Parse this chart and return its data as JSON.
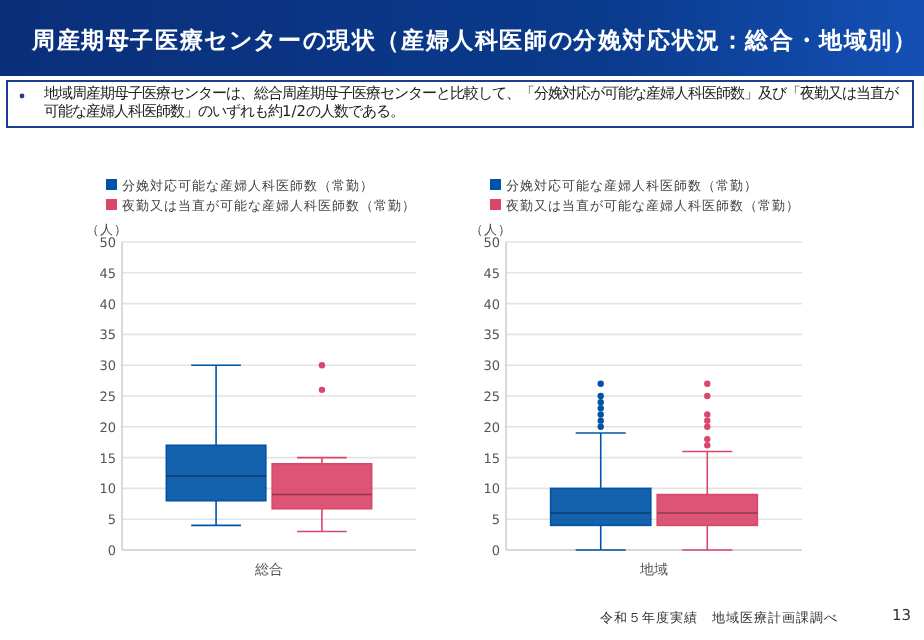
{
  "chart_data": [
    {
      "type": "box",
      "title": "周産期母子医療センターの現状（産婦人科医師の分娩対応状況：総合・地域別）",
      "subtitle": "地域周産期母子医療センターは、総合周産期母子医療センターと比較して、「分娩対応が可能な産婦人科医師数」及び「夜勤又は当直が可能な産婦人科医師数」のいずれも約1/2の人数である。",
      "ylabel": "（人）",
      "categories": [
        "総合"
      ],
      "ylim": [
        0,
        50
      ],
      "yticks": [
        0,
        5,
        10,
        15,
        20,
        25,
        30,
        35,
        40,
        45,
        50
      ],
      "grid": "y",
      "legend": "top",
      "series": [
        {
          "name": "分娩対応可能な産婦人科医師数（常勤）",
          "color": "#0054a6",
          "boxes": [
            {
              "low": 4,
              "q1": 8,
              "median": 12,
              "q3": 17,
              "high": 30
            }
          ]
        },
        {
          "name": "夜勤又は当直が可能な産婦人科医師数（常勤）",
          "color": "#d9476a",
          "boxes": [
            {
              "low": 3,
              "q1": 6.7,
              "median": 9,
              "q3": 14,
              "high": 15,
              "outliers": [
                26,
                30
              ]
            }
          ]
        }
      ]
    },
    {
      "type": "box",
      "ylabel": "（人）",
      "categories": [
        "地域"
      ],
      "ylim": [
        0,
        50
      ],
      "yticks": [
        0,
        5,
        10,
        15,
        20,
        25,
        30,
        35,
        40,
        45,
        50
      ],
      "grid": "y",
      "legend": "top",
      "annotations": [
        "令和５年度実績　地域医療計画課調べ",
        "13"
      ],
      "series": [
        {
          "name": "分娩対応可能な産婦人科医師数（常勤）",
          "color": "#0054a6",
          "boxes": [
            {
              "low": 0,
              "q1": 4,
              "median": 6,
              "q3": 10,
              "high": 19,
              "outliers": [
                20,
                21,
                22,
                23,
                24,
                25,
                27
              ]
            }
          ]
        },
        {
          "name": "夜勤又は当直が可能な産婦人科医師数（常勤）",
          "color": "#d9476a",
          "boxes": [
            {
              "low": 0,
              "q1": 4,
              "median": 6,
              "q3": 9,
              "high": 16,
              "outliers": [
                17,
                18,
                20,
                21,
                22,
                25,
                27
              ]
            }
          ]
        }
      ]
    }
  ]
}
